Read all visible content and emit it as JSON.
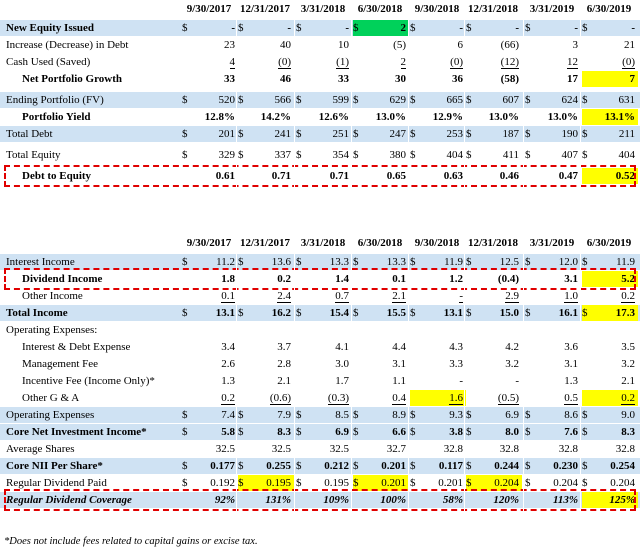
{
  "top_header": [
    "9/30/2017",
    "12/31/2017",
    "3/31/2018",
    "6/30/2018",
    "9/30/2018",
    "12/31/2018",
    "3/31/2019",
    "6/30/2019"
  ],
  "top_rows": [
    {
      "label": "New Equity Issued",
      "bold": true,
      "blue": true,
      "dollar": true,
      "values": [
        "-",
        "-",
        "-",
        "2",
        "-",
        "-",
        "-",
        "-"
      ],
      "hl": {
        "3": "g"
      }
    },
    {
      "label": "Increase (Decrease) in Debt",
      "values": [
        "23",
        "40",
        "10",
        "(5)",
        "6",
        "(66)",
        "3",
        "21"
      ]
    },
    {
      "label": "Cash Used (Saved)",
      "values": [
        "4",
        "(0)",
        "(1)",
        "2",
        "(0)",
        "(12)",
        "12",
        "(0)"
      ],
      "underline": true
    },
    {
      "label": "Net Portfolio Growth",
      "bold": true,
      "indent": true,
      "values": [
        "33",
        "46",
        "33",
        "30",
        "36",
        "(58)",
        "17",
        "7"
      ],
      "hl": {
        "7": "y"
      }
    },
    {
      "gap": true
    },
    {
      "label": "Ending Portfolio (FV)",
      "blue": true,
      "dollar": true,
      "values": [
        "520",
        "566",
        "599",
        "629",
        "665",
        "607",
        "624",
        "631"
      ]
    },
    {
      "label": "Portfolio Yield",
      "bold": true,
      "indent": true,
      "values": [
        "12.8%",
        "14.2%",
        "12.6%",
        "13.0%",
        "12.9%",
        "13.0%",
        "13.0%",
        "13.1%"
      ],
      "hl": {
        "7": "y"
      }
    },
    {
      "label": "Total Debt",
      "blue": true,
      "dollar": true,
      "values": [
        "201",
        "241",
        "251",
        "247",
        "253",
        "187",
        "190",
        "211"
      ]
    },
    {
      "gap": true
    },
    {
      "label": "Total Equity",
      "dollar": true,
      "values": [
        "329",
        "337",
        "354",
        "380",
        "404",
        "411",
        "407",
        "404"
      ]
    },
    {
      "gap": true
    },
    {
      "label": "Debt to Equity",
      "bold": true,
      "indent": true,
      "values": [
        "0.61",
        "0.71",
        "0.71",
        "0.65",
        "0.63",
        "0.46",
        "0.47",
        "0.52"
      ],
      "hl": {
        "7": "y"
      },
      "box": true
    }
  ],
  "bottom_header": [
    "9/30/2017",
    "12/31/2017",
    "3/31/2018",
    "6/30/2018",
    "9/30/2018",
    "12/31/2018",
    "3/31/2019",
    "6/30/2019"
  ],
  "bottom_rows": [
    {
      "label": "Interest Income",
      "blue": true,
      "dollar": true,
      "values": [
        "11.2",
        "13.6",
        "13.3",
        "13.3",
        "11.9",
        "12.5",
        "12.0",
        "11.9"
      ]
    },
    {
      "label": "Dividend Income",
      "bold": true,
      "indent": true,
      "values": [
        "1.8",
        "0.2",
        "1.4",
        "0.1",
        "1.2",
        "(0.4)",
        "3.1",
        "5.2"
      ],
      "hl": {
        "7": "y"
      },
      "box": true
    },
    {
      "label": "Other Income",
      "indent": true,
      "values": [
        "0.1",
        "2.4",
        "0.7",
        "2.1",
        "-",
        "2.9",
        "1.0",
        "0.2"
      ],
      "underline": true
    },
    {
      "label": "Total Income",
      "bold": true,
      "blue": true,
      "dollar": true,
      "values": [
        "13.1",
        "16.2",
        "15.4",
        "15.5",
        "13.1",
        "15.0",
        "16.1",
        "17.3"
      ],
      "hl": {
        "7": "y"
      }
    },
    {
      "label": "Operating Expenses:",
      "values": [
        "",
        "",
        "",
        "",
        "",
        "",
        "",
        ""
      ]
    },
    {
      "label": "Interest & Debt Expense",
      "indent": true,
      "values": [
        "3.4",
        "3.7",
        "4.1",
        "4.4",
        "4.3",
        "4.2",
        "3.6",
        "3.5"
      ]
    },
    {
      "label": "Management Fee",
      "indent": true,
      "values": [
        "2.6",
        "2.8",
        "3.0",
        "3.1",
        "3.3",
        "3.2",
        "3.1",
        "3.2"
      ]
    },
    {
      "label": "Incentive Fee (Income Only)*",
      "indent": true,
      "values": [
        "1.3",
        "2.1",
        "1.7",
        "1.1",
        "-",
        "-",
        "1.3",
        "2.1"
      ]
    },
    {
      "label": "Other G & A",
      "indent": true,
      "values": [
        "0.2",
        "(0.6)",
        "(0.3)",
        "0.4",
        "1.6",
        "(0.5)",
        "0.5",
        "0.2"
      ],
      "hl": {
        "4": "y",
        "7": "y"
      },
      "underline": true
    },
    {
      "label": "Operating Expenses",
      "blue": true,
      "dollar": true,
      "values": [
        "7.4",
        "7.9",
        "8.5",
        "8.9",
        "9.3",
        "6.9",
        "8.6",
        "9.0"
      ]
    },
    {
      "label": "Core Net Investment Income*",
      "bold": true,
      "blue": true,
      "dollar": true,
      "values": [
        "5.8",
        "8.3",
        "6.9",
        "6.6",
        "3.8",
        "8.0",
        "7.6",
        "8.3"
      ]
    },
    {
      "label": "Average Shares",
      "values": [
        "32.5",
        "32.5",
        "32.5",
        "32.7",
        "32.8",
        "32.8",
        "32.8",
        "32.8"
      ]
    },
    {
      "label": "Core NII Per Share*",
      "bold": true,
      "blue": true,
      "dollar": true,
      "values": [
        "0.177",
        "0.255",
        "0.212",
        "0.201",
        "0.117",
        "0.244",
        "0.230",
        "0.254"
      ]
    },
    {
      "label": "Regular Dividend Paid",
      "dollar": true,
      "values": [
        "0.192",
        "0.195",
        "0.195",
        "0.201",
        "0.201",
        "0.204",
        "0.204",
        "0.204"
      ],
      "hl": {
        "1": "y",
        "3": "y",
        "5": "y"
      }
    },
    {
      "label": "Regular Dividend Coverage",
      "bold": true,
      "italic": true,
      "blue": true,
      "values": [
        "92%",
        "131%",
        "109%",
        "100%",
        "58%",
        "120%",
        "113%",
        "125%"
      ],
      "hl": {
        "7": "y"
      },
      "box": true
    }
  ],
  "footnote": "*Does not include fees related to capital gains or excise tax.",
  "colors": {
    "blue_band": "#cfe2f3",
    "highlight_yellow": "#ffff00",
    "highlight_green": "#00d15a",
    "red_dash": "#e00000"
  }
}
